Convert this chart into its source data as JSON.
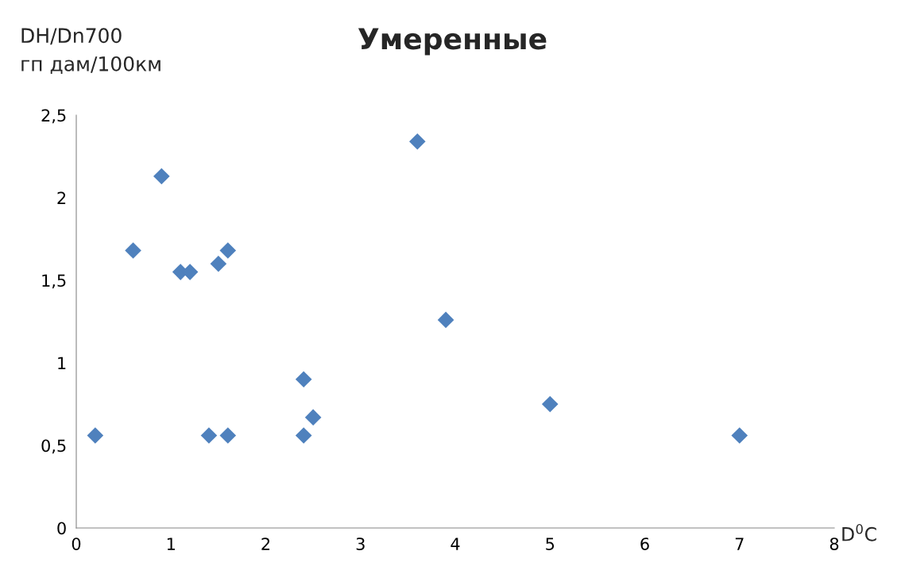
{
  "chart_data": {
    "type": "scatter",
    "title": "Умеренные",
    "ylabel": "DH/Dn700\nгп дам/100км",
    "xlabel": "D$^{0}$C",
    "x": [
      0.2,
      0.6,
      0.9,
      1.1,
      1.2,
      1.4,
      1.5,
      1.6,
      1.6,
      2.4,
      2.4,
      2.5,
      3.6,
      3.9,
      5.0,
      7.0
    ],
    "series": [
      {
        "color": "#4f81bd",
        "values": [
          0.56,
          1.68,
          2.13,
          1.55,
          1.55,
          0.56,
          1.6,
          1.68,
          0.56,
          0.9,
          0.56,
          0.67,
          2.34,
          1.26,
          0.75,
          0.56
        ]
      }
    ],
    "xlim": [
      0,
      8
    ],
    "xticks": [
      0,
      1,
      2,
      3,
      4,
      5,
      6,
      7,
      8
    ],
    "ylim": [
      0,
      2.5
    ],
    "yticks": [
      0,
      {
        "value": 0.5,
        "label": "0,5"
      },
      1,
      {
        "value": 1.5,
        "label": "1,5"
      },
      2,
      {
        "value": 2.5,
        "label": "2,5"
      }
    ],
    "marker": "diamond",
    "grid": false,
    "legend": false
  }
}
